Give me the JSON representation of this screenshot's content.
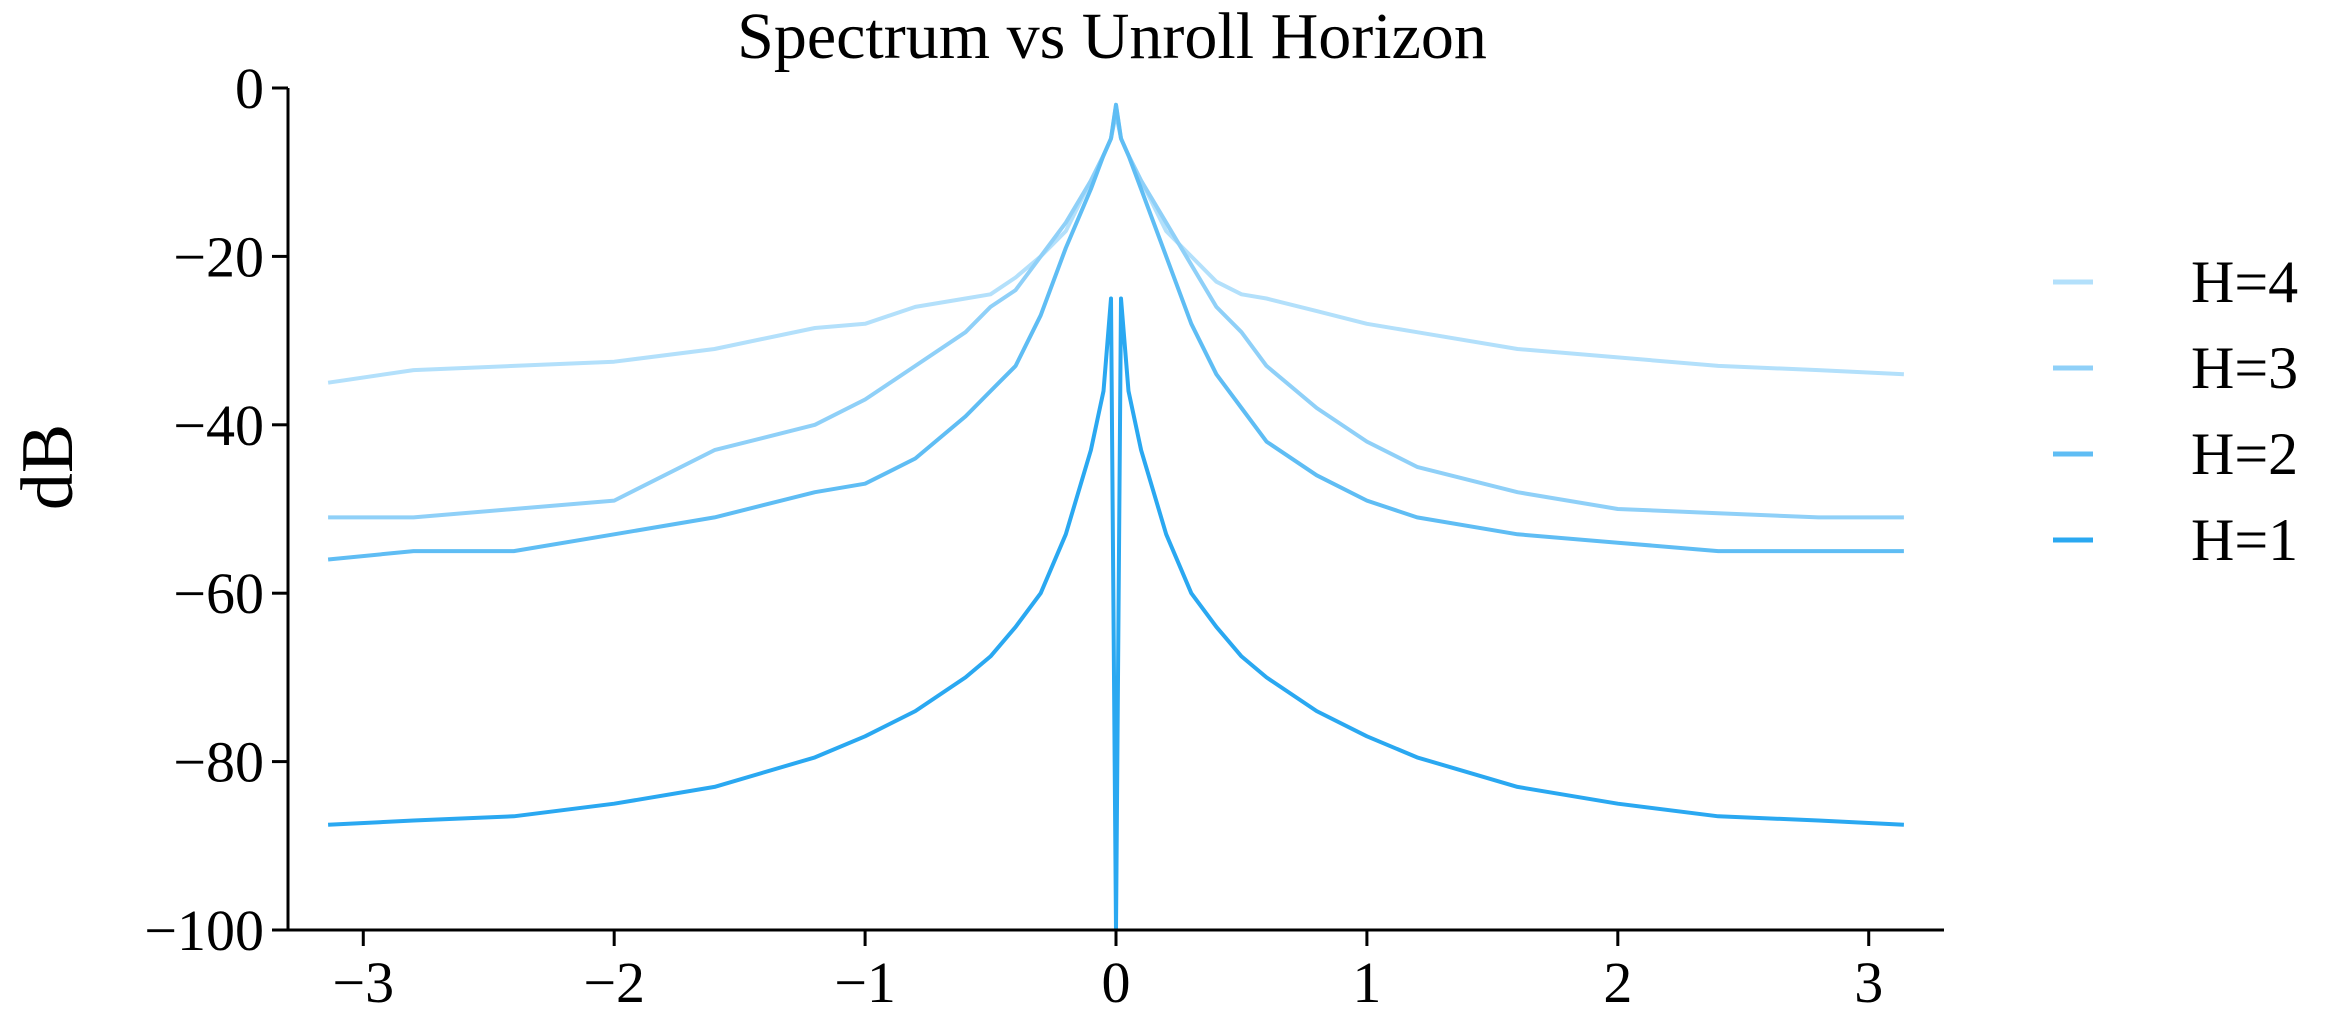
{
  "chart_data": {
    "type": "line",
    "title": "Spectrum vs Unroll Horizon",
    "xlabel": "",
    "ylabel": "dB",
    "xlim": [
      -3.3,
      3.3
    ],
    "ylim": [
      -100,
      0
    ],
    "xticks": [
      -3,
      -2,
      -1,
      0,
      1,
      2,
      3
    ],
    "xtick_labels": [
      "−3",
      "−2",
      "−1",
      "0",
      "1",
      "2",
      "3"
    ],
    "yticks": [
      0,
      -20,
      -40,
      -60,
      -80,
      -100
    ],
    "ytick_labels": [
      "0",
      "−20",
      "−40",
      "−60",
      "−80",
      "−100"
    ],
    "grid": false,
    "legend_position": "right",
    "x": [
      -3.14,
      -2.8,
      -2.4,
      -2.0,
      -1.6,
      -1.2,
      -1.0,
      -0.8,
      -0.6,
      -0.5,
      -0.4,
      -0.3,
      -0.2,
      -0.1,
      -0.05,
      -0.02,
      0.0,
      0.02,
      0.05,
      0.1,
      0.2,
      0.3,
      0.4,
      0.5,
      0.6,
      0.8,
      1.0,
      1.2,
      1.6,
      2.0,
      2.4,
      2.8,
      3.14
    ],
    "series": [
      {
        "name": "H=4",
        "color": "#b3e0fb",
        "values": [
          -35,
          -33.5,
          -33,
          -32.5,
          -31,
          -28.5,
          -28,
          -26,
          -25,
          -24.5,
          -22.5,
          -20,
          -17,
          -11,
          -8,
          -6,
          -2,
          -6,
          -8,
          -11,
          -17,
          -20,
          -23,
          -24.5,
          -25,
          -26.5,
          -28,
          -29,
          -31,
          -32,
          -33,
          -33.5,
          -34
        ]
      },
      {
        "name": "H=3",
        "color": "#8fd0f8",
        "values": [
          -51,
          -51,
          -50,
          -49,
          -43,
          -40,
          -37,
          -33,
          -29,
          -26,
          -24,
          -20,
          -16,
          -11,
          -8,
          -6,
          -3,
          -6,
          -8,
          -11,
          -16,
          -21,
          -26,
          -29,
          -33,
          -38,
          -42,
          -45,
          -48,
          -50,
          -50.5,
          -51,
          -51
        ]
      },
      {
        "name": "H=2",
        "color": "#5fbdf4",
        "values": [
          -56,
          -55,
          -55,
          -53,
          -51,
          -48,
          -47,
          -44,
          -39,
          -36,
          -33,
          -27,
          -19,
          -12,
          -8,
          -6,
          -2,
          -6,
          -8,
          -12,
          -20,
          -28,
          -34,
          -38,
          -42,
          -46,
          -49,
          -51,
          -53,
          -54,
          -55,
          -55,
          -55
        ]
      },
      {
        "name": "H=1",
        "color": "#2aa8f1",
        "values": [
          -87.5,
          -87,
          -86.5,
          -85,
          -83,
          -79.5,
          -77,
          -74,
          -70,
          -67.5,
          -64,
          -60,
          -53,
          -43,
          -36,
          -25,
          -100,
          -25,
          -36,
          -43,
          -53,
          -60,
          -64,
          -67.5,
          -70,
          -74,
          -77,
          -79.5,
          -83,
          -85,
          -86.5,
          -87,
          -87.5
        ]
      }
    ]
  }
}
